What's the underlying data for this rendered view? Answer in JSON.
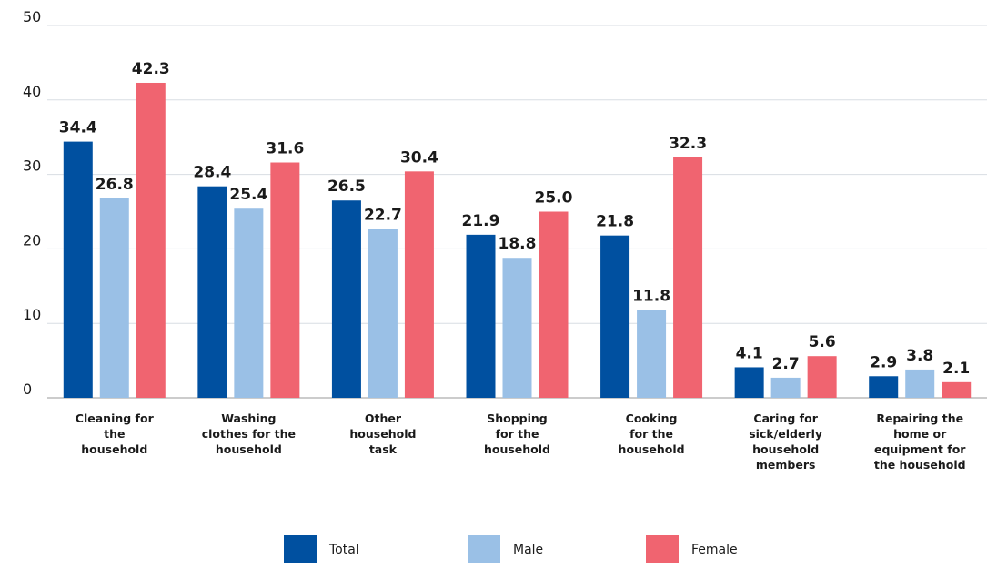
{
  "chart_data": {
    "type": "bar",
    "categories": [
      [
        "Cleaning for",
        "the",
        "household"
      ],
      [
        "Washing",
        "clothes for the",
        "household"
      ],
      [
        "Other",
        "household",
        "task"
      ],
      [
        "Shopping",
        "for the",
        "household"
      ],
      [
        "Cooking",
        "for the",
        "household"
      ],
      [
        "Caring for",
        "sick/elderly",
        "household",
        "members"
      ],
      [
        "Repairing the",
        "home or",
        "equipment for",
        "the household"
      ]
    ],
    "series": [
      {
        "name": "Total",
        "color": "#0050a0",
        "values": [
          34.4,
          28.4,
          26.5,
          21.9,
          21.8,
          4.1,
          2.9
        ],
        "value_labels": [
          "34.4",
          "28.4",
          "26.5",
          "21.9",
          "21.8",
          "4.1",
          "2.9"
        ]
      },
      {
        "name": "Male",
        "color": "#9ac0e6",
        "values": [
          26.8,
          25.4,
          22.7,
          18.8,
          11.8,
          2.7,
          3.8
        ],
        "value_labels": [
          "26.8",
          "25.4",
          "22.7",
          "18.8",
          "11.8",
          "2.7",
          "3.8"
        ]
      },
      {
        "name": "Female",
        "color": "#f06470",
        "values": [
          42.3,
          31.6,
          30.4,
          25.0,
          32.3,
          5.6,
          2.1
        ],
        "value_labels": [
          "42.3",
          "31.6",
          "30.4",
          "25.0",
          "32.3",
          "5.6",
          "2.1"
        ]
      }
    ],
    "ylim": [
      0,
      50
    ],
    "yticks": [
      0,
      10,
      20,
      30,
      40,
      50
    ],
    "grid": true
  }
}
